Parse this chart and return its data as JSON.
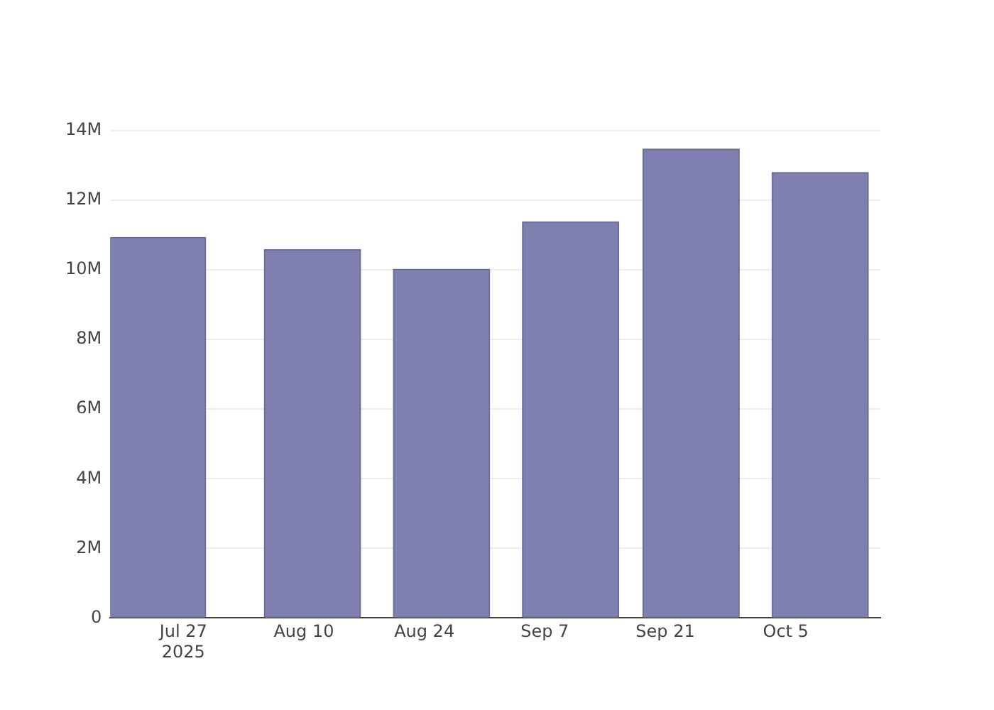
{
  "chart_data": {
    "type": "bar",
    "x": [
      "2025-07-24",
      "2025-08-11",
      "2025-08-26",
      "2025-09-10",
      "2025-09-24",
      "2025-10-09"
    ],
    "values": [
      10930000,
      10580000,
      10020000,
      11380000,
      13470000,
      12800000
    ],
    "color": "#7f7fb0",
    "xlim": [
      "2025-07-18T12:00",
      "2025-10-16"
    ],
    "xticks": [
      {
        "value": "2025-07-27",
        "label": "Jul 27\n2025"
      },
      {
        "value": "2025-08-10",
        "label": "Aug 10"
      },
      {
        "value": "2025-08-24",
        "label": "Aug 24"
      },
      {
        "value": "2025-09-07",
        "label": "Sep 7"
      },
      {
        "value": "2025-09-21",
        "label": "Sep 21"
      },
      {
        "value": "2025-10-05",
        "label": "Oct 5"
      }
    ],
    "ylim": [
      0,
      14000000
    ],
    "yticks": [
      {
        "value": 0,
        "label": "0"
      },
      {
        "value": 2000000,
        "label": "2M"
      },
      {
        "value": 4000000,
        "label": "4M"
      },
      {
        "value": 6000000,
        "label": "6M"
      },
      {
        "value": 8000000,
        "label": "8M"
      },
      {
        "value": 10000000,
        "label": "10M"
      },
      {
        "value": 12000000,
        "label": "12M"
      },
      {
        "value": 14000000,
        "label": "14M"
      }
    ],
    "grid": "y",
    "legend": false
  }
}
